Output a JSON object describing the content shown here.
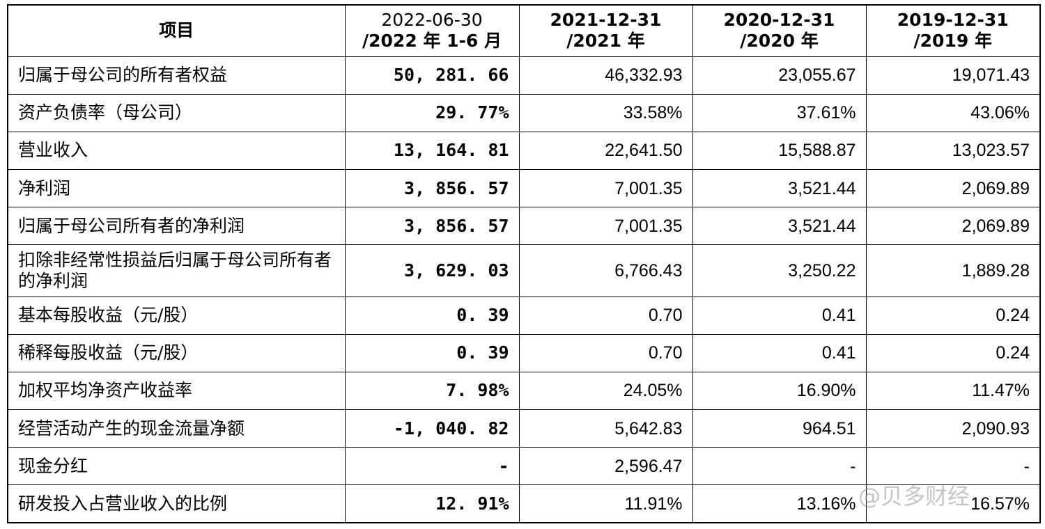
{
  "headers": [
    [
      "项目"
    ],
    [
      "2022-06-30",
      "/2022 年 1-6 月"
    ],
    [
      "2021-12-31",
      "/2021 年"
    ],
    [
      "2020-12-31",
      "/2020 年"
    ],
    [
      "2019-12-31",
      "/2019 年"
    ]
  ],
  "rows": [
    {
      "label": "归属于母公司的所有者权益",
      "values": [
        "50, 281. 66",
        "46,332.93",
        "23,055.67",
        "19,071.43"
      ]
    },
    {
      "label": "资产负债率（母公司）",
      "values": [
        "29. 77%",
        "33.58%",
        "37.61%",
        "43.06%"
      ]
    },
    {
      "label": "营业收入",
      "values": [
        "13, 164. 81",
        "22,641.50",
        "15,588.87",
        "13,023.57"
      ]
    },
    {
      "label": "净利润",
      "values": [
        "3, 856. 57",
        "7,001.35",
        "3,521.44",
        "2,069.89"
      ]
    },
    {
      "label": "归属于母公司所有者的净利润",
      "values": [
        "3, 856. 57",
        "7,001.35",
        "3,521.44",
        "2,069.89"
      ]
    },
    {
      "label": "扣除非经常性损益后归属于母公司所有者的净利润",
      "values": [
        "3, 629. 03",
        "6,766.43",
        "3,250.22",
        "1,889.28"
      ]
    },
    {
      "label": "基本每股收益（元/股）",
      "values": [
        "0. 39",
        "0.70",
        "0.41",
        "0.24"
      ]
    },
    {
      "label": "稀释每股收益（元/股）",
      "values": [
        "0. 39",
        "0.70",
        "0.41",
        "0.24"
      ]
    },
    {
      "label": "加权平均净资产收益率",
      "values": [
        "7. 98%",
        "24.05%",
        "16.90%",
        "11.47%"
      ]
    },
    {
      "label": "经营活动产生的现金流量净额",
      "values": [
        "-1, 040. 82",
        "5,642.83",
        "964.51",
        "2,090.93"
      ]
    },
    {
      "label": "现金分红",
      "values": [
        "-",
        "2,596.47",
        "-",
        "-"
      ]
    },
    {
      "label": "研发投入占营业收入的比例",
      "values": [
        "12. 91%",
        "11.91%",
        "13.16%",
        "16.57%"
      ]
    }
  ],
  "watermark": "@贝多财经"
}
